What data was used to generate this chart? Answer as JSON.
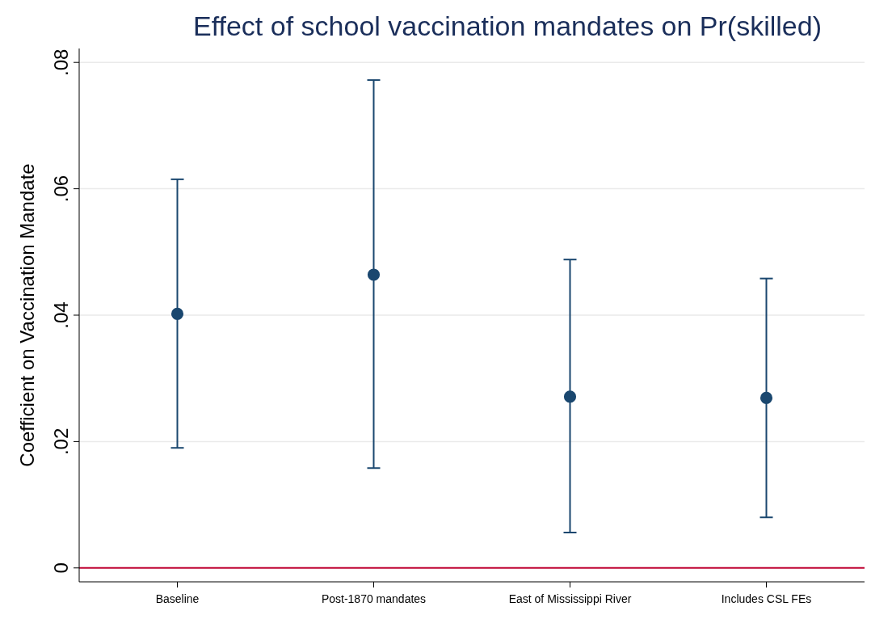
{
  "chart_data": {
    "type": "scatter",
    "title": "Effect of school vaccination mandates on Pr(skilled)",
    "ylabel": "Coefficient on Vaccination Mandate",
    "categories": [
      "Baseline",
      "Post-1870 mandates",
      "East of Mississippi River",
      "Includes CSL FEs"
    ],
    "values": [
      0.0402,
      0.0464,
      0.0271,
      0.0269
    ],
    "errors": [
      [
        0.019,
        0.0615
      ],
      [
        0.0158,
        0.0772
      ],
      [
        0.0056,
        0.0488
      ],
      [
        0.008,
        0.0458
      ]
    ],
    "color": "#1a476f",
    "marker": "circle",
    "ylim": [
      -0.0022,
      0.0822
    ],
    "yticks": [
      {
        "value": 0,
        "label": "0"
      },
      {
        "value": 0.02,
        "label": ".02"
      },
      {
        "value": 0.04,
        "label": ".04"
      },
      {
        "value": 0.06,
        "label": ".06"
      },
      {
        "value": 0.08,
        "label": ".08"
      }
    ],
    "grid": "y",
    "ref_lines": [
      {
        "axis": "y",
        "value": 0,
        "color": "#c10534"
      }
    ]
  }
}
